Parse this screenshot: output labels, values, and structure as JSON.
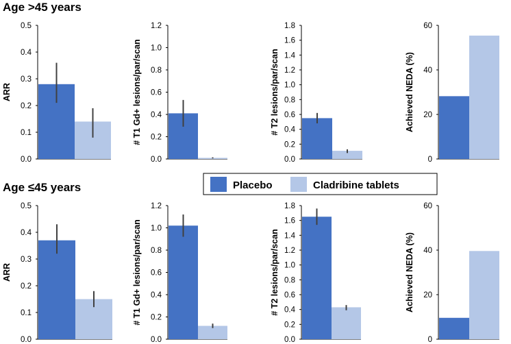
{
  "section_titles": [
    "Age >45 years",
    "Age ≤45 years"
  ],
  "legend": {
    "items": [
      {
        "label": "Placebo",
        "color": "#4472C4"
      },
      {
        "label": "Cladribine tablets",
        "color": "#B4C7E7"
      }
    ]
  },
  "colors": {
    "placebo": "#4472C4",
    "cladribine": "#B4C7E7",
    "error_bar": "#404040",
    "axis": "#000000"
  },
  "chart_data": [
    {
      "type": "bar",
      "panel": "age-gt45-arr",
      "ylabel": "ARR",
      "ylim": [
        0,
        0.5
      ],
      "yticks": [
        0,
        0.1,
        0.2,
        0.3,
        0.4,
        0.5
      ],
      "tick_decimals": 1,
      "series": [
        {
          "name": "Placebo",
          "values": [
            0.28
          ],
          "error": [
            0.21,
            0.36
          ]
        },
        {
          "name": "Cladribine tablets",
          "values": [
            0.14
          ],
          "error": [
            0.08,
            0.19
          ]
        }
      ]
    },
    {
      "type": "bar",
      "panel": "age-gt45-t1",
      "ylabel": "# T1 Gd+ lesions/par/scan",
      "ylim": [
        0,
        1.2
      ],
      "yticks": [
        0,
        0.2,
        0.4,
        0.6,
        0.8,
        1.0,
        1.2
      ],
      "tick_decimals": 1,
      "series": [
        {
          "name": "Placebo",
          "values": [
            0.41
          ],
          "error": [
            0.29,
            0.53
          ]
        },
        {
          "name": "Cladribine tablets",
          "values": [
            0.01
          ],
          "error": [
            0.005,
            0.015
          ]
        }
      ]
    },
    {
      "type": "bar",
      "panel": "age-gt45-t2",
      "ylabel": "# T2 lesions/par/scan",
      "ylim": [
        0,
        1.8
      ],
      "yticks": [
        0,
        0.2,
        0.4,
        0.6,
        0.8,
        1.0,
        1.2,
        1.4,
        1.6,
        1.8
      ],
      "tick_decimals": 1,
      "series": [
        {
          "name": "Placebo",
          "values": [
            0.55
          ],
          "error": [
            0.48,
            0.62
          ]
        },
        {
          "name": "Cladribine tablets",
          "values": [
            0.11
          ],
          "error": [
            0.08,
            0.13
          ]
        }
      ]
    },
    {
      "type": "bar",
      "panel": "age-gt45-neda",
      "ylabel": "Achieved NEDA (%)",
      "ylim": [
        0,
        60
      ],
      "yticks": [
        0,
        20,
        40,
        60
      ],
      "tick_decimals": 0,
      "series": [
        {
          "name": "Placebo",
          "values": [
            28.2
          ]
        },
        {
          "name": "Cladribine tablets",
          "values": [
            55.4
          ]
        }
      ]
    },
    {
      "type": "bar",
      "panel": "age-le45-arr",
      "ylabel": "ARR",
      "ylim": [
        0,
        0.5
      ],
      "yticks": [
        0,
        0.1,
        0.2,
        0.3,
        0.4,
        0.5
      ],
      "tick_decimals": 1,
      "series": [
        {
          "name": "Placebo",
          "values": [
            0.37
          ],
          "error": [
            0.32,
            0.43
          ]
        },
        {
          "name": "Cladribine tablets",
          "values": [
            0.15
          ],
          "error": [
            0.12,
            0.18
          ]
        }
      ]
    },
    {
      "type": "bar",
      "panel": "age-le45-t1",
      "ylabel": "# T1 Gd+ lesions/par/scan",
      "ylim": [
        0,
        1.2
      ],
      "yticks": [
        0,
        0.2,
        0.4,
        0.6,
        0.8,
        1.0,
        1.2
      ],
      "tick_decimals": 1,
      "series": [
        {
          "name": "Placebo",
          "values": [
            1.02
          ],
          "error": [
            0.92,
            1.12
          ]
        },
        {
          "name": "Cladribine tablets",
          "values": [
            0.12
          ],
          "error": [
            0.1,
            0.14
          ]
        }
      ]
    },
    {
      "type": "bar",
      "panel": "age-le45-t2",
      "ylabel": "# T2 lesions/par/scan",
      "ylim": [
        0,
        1.8
      ],
      "yticks": [
        0,
        0.2,
        0.4,
        0.6,
        0.8,
        1.0,
        1.2,
        1.4,
        1.6,
        1.8
      ],
      "tick_decimals": 1,
      "series": [
        {
          "name": "Placebo",
          "values": [
            1.65
          ],
          "error": [
            1.54,
            1.76
          ]
        },
        {
          "name": "Cladribine tablets",
          "values": [
            0.43
          ],
          "error": [
            0.39,
            0.46
          ]
        }
      ]
    },
    {
      "type": "bar",
      "panel": "age-le45-neda",
      "ylabel": "Achieved NEDA (%)",
      "ylim": [
        0,
        60
      ],
      "yticks": [
        0,
        20,
        40,
        60
      ],
      "tick_decimals": 0,
      "series": [
        {
          "name": "Placebo",
          "values": [
            9.6
          ]
        },
        {
          "name": "Cladribine tablets",
          "values": [
            39.6
          ]
        }
      ]
    }
  ]
}
